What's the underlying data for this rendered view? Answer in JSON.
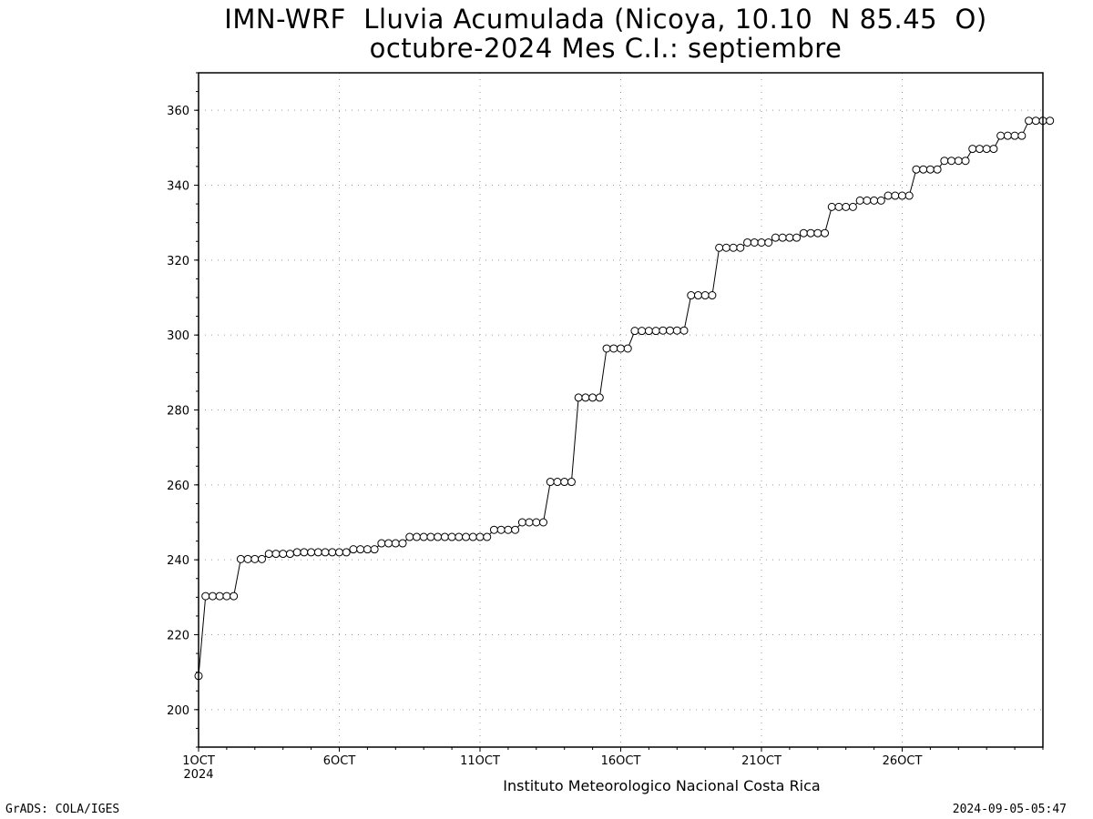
{
  "chart_data": {
    "type": "line",
    "title": "IMN-WRF  Lluvia Acumulada (Nicoya, 10.10  N 85.45  O)",
    "subtitle": "octubre-2024 Mes C.I.: septiembre",
    "xlabel": "Instituto Meteorologico Nacional Costa Rica",
    "ylabel": "",
    "x_tick_labels": [
      "1OCT",
      "6OCT",
      "11OCT",
      "16OCT",
      "21OCT",
      "26OCT"
    ],
    "x_tick_year": "2024",
    "x_tick_days": [
      1,
      6,
      11,
      16,
      21,
      26
    ],
    "xlim": [
      1,
      31
    ],
    "ylim": [
      190,
      370
    ],
    "y_ticks": [
      200,
      220,
      240,
      260,
      280,
      300,
      320,
      340,
      360
    ],
    "grid": true,
    "marker": "open-circle",
    "x_step_days": 0.25,
    "series": [
      {
        "values": [
          209.0,
          230.3,
          230.3,
          230.3,
          230.3,
          230.3,
          240.2,
          240.2,
          240.2,
          240.2,
          241.6,
          241.6,
          241.6,
          241.6,
          242.0,
          242.0,
          242.0,
          242.0,
          242.0,
          242.0,
          242.0,
          242.0,
          242.8,
          242.8,
          242.8,
          242.8,
          244.4,
          244.4,
          244.4,
          244.4,
          246.1,
          246.1,
          246.1,
          246.1,
          246.1,
          246.1,
          246.1,
          246.1,
          246.1,
          246.1,
          246.1,
          246.1,
          248.0,
          248.0,
          248.0,
          248.0,
          250.0,
          250.0,
          250.0,
          250.0,
          260.8,
          260.8,
          260.8,
          260.8,
          283.3,
          283.3,
          283.3,
          283.3,
          296.4,
          296.4,
          296.4,
          296.4,
          301.1,
          301.1,
          301.1,
          301.1,
          301.2,
          301.2,
          301.2,
          301.2,
          310.6,
          310.6,
          310.6,
          310.6,
          323.3,
          323.3,
          323.3,
          323.3,
          324.7,
          324.7,
          324.7,
          324.7,
          326.0,
          326.0,
          326.0,
          326.0,
          327.2,
          327.2,
          327.2,
          327.2,
          334.2,
          334.2,
          334.2,
          334.2,
          335.9,
          335.9,
          335.9,
          335.9,
          337.2,
          337.2,
          337.2,
          337.2,
          344.2,
          344.2,
          344.2,
          344.2,
          346.5,
          346.5,
          346.5,
          346.5,
          349.7,
          349.7,
          349.7,
          349.7,
          353.2,
          353.2,
          353.2,
          353.2,
          357.2,
          357.2,
          357.2,
          357.2
        ]
      }
    ]
  },
  "footer": {
    "left": "GrADS: COLA/IGES",
    "right": "2024-09-05-05:47"
  }
}
